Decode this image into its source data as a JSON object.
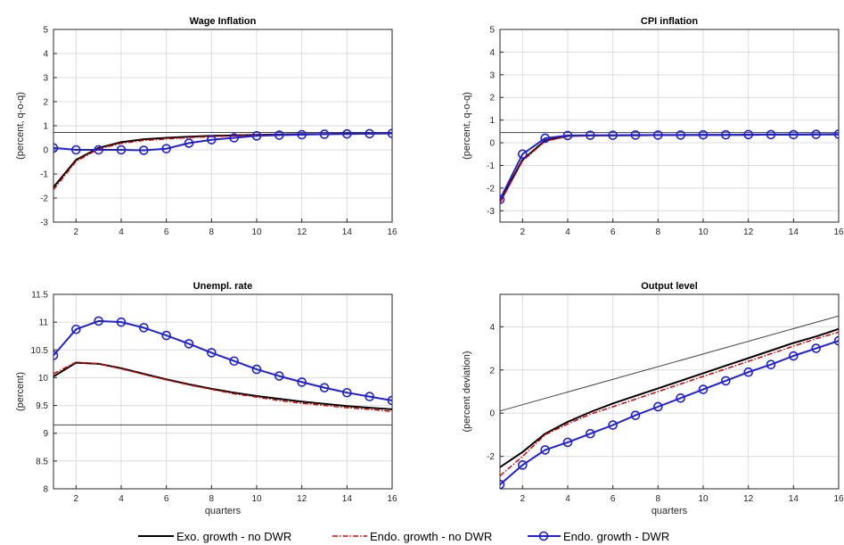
{
  "chart_data": [
    {
      "type": "line",
      "title": "Wage Inflation",
      "xlabel": "",
      "ylabel": "(percent,  q-o-q)",
      "xlim": [
        1,
        16
      ],
      "ylim": [
        -3,
        5
      ],
      "xticks": [
        2,
        4,
        6,
        8,
        10,
        12,
        14,
        16
      ],
      "yticks": [
        -3,
        -2,
        -1,
        0,
        1,
        2,
        3,
        4,
        5
      ],
      "grid": true,
      "reference_line": 0.72,
      "x": [
        1,
        2,
        3,
        4,
        5,
        6,
        7,
        8,
        9,
        10,
        11,
        12,
        13,
        14,
        15,
        16
      ],
      "series": [
        {
          "name": "Exo. growth - no DWR",
          "values": [
            -1.55,
            -0.42,
            0.08,
            0.32,
            0.44,
            0.5,
            0.55,
            0.58,
            0.6,
            0.62,
            0.64,
            0.65,
            0.66,
            0.67,
            0.68,
            0.69
          ]
        },
        {
          "name": "Endo. growth - no DWR",
          "values": [
            -1.65,
            -0.48,
            0.04,
            0.27,
            0.39,
            0.45,
            0.51,
            0.55,
            0.58,
            0.61,
            0.63,
            0.64,
            0.65,
            0.66,
            0.67,
            0.68
          ]
        },
        {
          "name": "Endo. growth - DWR",
          "values": [
            0.08,
            0.0,
            0.0,
            0.0,
            -0.02,
            0.05,
            0.28,
            0.42,
            0.5,
            0.58,
            0.61,
            0.63,
            0.65,
            0.66,
            0.67,
            0.68
          ]
        }
      ]
    },
    {
      "type": "line",
      "title": "CPI inflation",
      "xlabel": "",
      "ylabel": "(percent,  q-o-q)",
      "xlim": [
        1,
        16
      ],
      "ylim": [
        -3.5,
        5
      ],
      "xticks": [
        2,
        4,
        6,
        8,
        10,
        12,
        14,
        16
      ],
      "yticks": [
        -3,
        -2,
        -1,
        0,
        1,
        2,
        3,
        4,
        5
      ],
      "grid": true,
      "reference_line": 0.45,
      "x": [
        1,
        2,
        3,
        4,
        5,
        6,
        7,
        8,
        9,
        10,
        11,
        12,
        13,
        14,
        15,
        16
      ],
      "series": [
        {
          "name": "Exo. growth - no DWR",
          "values": [
            -2.6,
            -0.75,
            0.1,
            0.3,
            0.32,
            0.33,
            0.33,
            0.34,
            0.34,
            0.35,
            0.35,
            0.35,
            0.36,
            0.36,
            0.37,
            0.37
          ]
        },
        {
          "name": "Endo. growth - no DWR",
          "values": [
            -2.65,
            -0.8,
            0.07,
            0.28,
            0.31,
            0.32,
            0.33,
            0.33,
            0.34,
            0.34,
            0.35,
            0.35,
            0.36,
            0.36,
            0.37,
            0.37
          ]
        },
        {
          "name": "Endo. growth - DWR",
          "values": [
            -2.5,
            -0.5,
            0.2,
            0.32,
            0.33,
            0.33,
            0.34,
            0.34,
            0.34,
            0.35,
            0.35,
            0.36,
            0.36,
            0.36,
            0.37,
            0.38
          ]
        }
      ]
    },
    {
      "type": "line",
      "title": "Unempl. rate",
      "xlabel": "",
      "ylabel": "(percent)",
      "xlim": [
        1,
        16
      ],
      "ylim": [
        8,
        11.5
      ],
      "xticks": [
        2,
        4,
        6,
        8,
        10,
        12,
        14,
        16
      ],
      "yticks": [
        8,
        8.5,
        9,
        9.5,
        10,
        10.5,
        11,
        11.5
      ],
      "grid": true,
      "reference_line": 9.15,
      "x": [
        1,
        2,
        3,
        4,
        5,
        6,
        7,
        8,
        9,
        10,
        11,
        12,
        13,
        14,
        15,
        16
      ],
      "series": [
        {
          "name": "Exo. growth - no DWR",
          "values": [
            10.02,
            10.27,
            10.25,
            10.17,
            10.07,
            9.97,
            9.88,
            9.8,
            9.73,
            9.67,
            9.62,
            9.57,
            9.53,
            9.49,
            9.46,
            9.43
          ]
        },
        {
          "name": "Endo. growth - no DWR",
          "values": [
            10.07,
            10.28,
            10.25,
            10.16,
            10.06,
            9.96,
            9.87,
            9.79,
            9.71,
            9.65,
            9.59,
            9.54,
            9.5,
            9.46,
            9.43,
            9.39
          ]
        },
        {
          "name": "Endo. growth - DWR",
          "values": [
            10.4,
            10.87,
            11.02,
            11.0,
            10.9,
            10.76,
            10.61,
            10.45,
            10.3,
            10.15,
            10.03,
            9.92,
            9.82,
            9.73,
            9.66,
            9.59
          ]
        }
      ]
    },
    {
      "type": "line",
      "title": "Output level",
      "xlabel": "quarters",
      "ylabel": "(percent deviation)",
      "xlim": [
        1,
        16
      ],
      "ylim": [
        -3.5,
        5.5
      ],
      "xticks": [
        2,
        4,
        6,
        8,
        10,
        12,
        14,
        16
      ],
      "yticks": [
        -2,
        0,
        2,
        4
      ],
      "grid": true,
      "reference_line_points": [
        [
          1,
          0.1
        ],
        [
          16,
          4.5
        ]
      ],
      "x": [
        1,
        2,
        3,
        4,
        5,
        6,
        7,
        8,
        9,
        10,
        11,
        12,
        13,
        14,
        15,
        16
      ],
      "series": [
        {
          "name": "Exo. growth - no DWR",
          "values": [
            -2.5,
            -1.8,
            -0.95,
            -0.4,
            0.05,
            0.45,
            0.8,
            1.15,
            1.5,
            1.85,
            2.2,
            2.55,
            2.9,
            3.25,
            3.55,
            3.9
          ]
        },
        {
          "name": "Endo. growth - no DWR",
          "values": [
            -2.9,
            -2.0,
            -1.0,
            -0.5,
            -0.05,
            0.3,
            0.65,
            1.0,
            1.35,
            1.7,
            2.05,
            2.4,
            2.75,
            3.1,
            3.45,
            3.75
          ]
        },
        {
          "name": "Endo. growth - DWR",
          "values": [
            -3.3,
            -2.4,
            -1.7,
            -1.35,
            -0.95,
            -0.55,
            -0.1,
            0.3,
            0.7,
            1.1,
            1.5,
            1.9,
            2.25,
            2.65,
            3.0,
            3.35
          ]
        }
      ]
    }
  ],
  "lower_xlabel": "quarters",
  "legend": {
    "placement": "bottom",
    "entries": [
      {
        "label": "Exo. growth - no DWR",
        "color": "#000000",
        "style": "solid"
      },
      {
        "label": "Endo. growth - no DWR",
        "color": "#e00000",
        "style": "dashdot"
      },
      {
        "label": "Endo. growth - DWR",
        "color": "#1f1fe0",
        "style": "circle-marker"
      }
    ]
  },
  "colors": {
    "exo": "#000000",
    "endo_no_dwr": "#e00000",
    "endo_dwr": "#1f1fe0",
    "reference": "#444444",
    "grid": "#dcdcdc",
    "axis": "#262626"
  }
}
